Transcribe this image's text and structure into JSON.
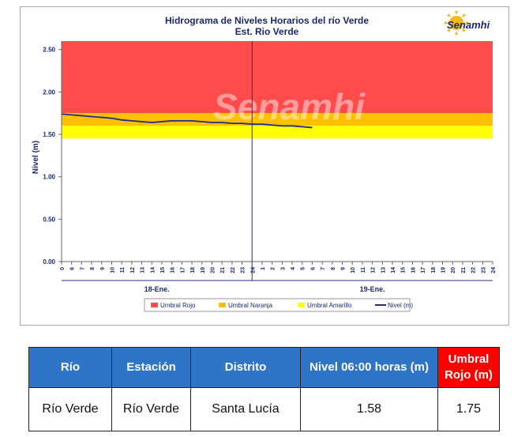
{
  "chart_data": {
    "type": "line",
    "title": "Hidrograma de Niveles Horarios del río Verde",
    "subtitle": "Est. Rio Verde",
    "ylabel": "Nivel (m)",
    "ylim": [
      0,
      2.6
    ],
    "y_ticks": [
      "0.00",
      "0.50",
      "1.00",
      "1.50",
      "2.00",
      "2.50"
    ],
    "x_ticks": [
      "0",
      "6",
      "7",
      "8",
      "9",
      "10",
      "11",
      "12",
      "13",
      "14",
      "15",
      "16",
      "17",
      "18",
      "19",
      "20",
      "21",
      "22",
      "23",
      "24",
      "1",
      "2",
      "3",
      "4",
      "5",
      "6",
      "7",
      "8",
      "9",
      "10",
      "11",
      "12",
      "13",
      "14",
      "15",
      "16",
      "17",
      "18",
      "19",
      "20",
      "21",
      "22",
      "23",
      "24"
    ],
    "day_labels": [
      "18-Ene.",
      "19-Ene."
    ],
    "thresholds": [
      {
        "name": "Umbral Rojo",
        "from": 1.75,
        "to": 2.6,
        "color": "#ff4b4b"
      },
      {
        "name": "Umbral Naranja",
        "from": 1.6,
        "to": 1.75,
        "color": "#ffc000"
      },
      {
        "name": "Umbral Amarillo",
        "from": 1.45,
        "to": 1.6,
        "color": "#ffff00"
      }
    ],
    "series": [
      {
        "name": "Nivel (m)",
        "color": "#1f2d8a",
        "values": [
          1.74,
          1.73,
          1.72,
          1.71,
          1.7,
          1.69,
          1.67,
          1.66,
          1.65,
          1.64,
          1.65,
          1.66,
          1.66,
          1.66,
          1.65,
          1.64,
          1.64,
          1.63,
          1.63,
          1.62,
          1.62,
          1.61,
          1.6,
          1.6,
          1.59,
          1.58
        ]
      }
    ],
    "legend": [
      "Umbral Rojo",
      "Umbral Naranja",
      "Umbral Amarillo",
      "Nivel (m)"
    ],
    "legend_position": "bottom",
    "grid": false
  },
  "logo": {
    "text": "Senamhi",
    "watermark": "Senamhi"
  },
  "table": {
    "headers": [
      "Río",
      "Estación",
      "Distrito",
      "Nivel  06:00 horas (m)",
      "Umbral Rojo (m)"
    ],
    "row": [
      "Río Verde",
      "Río Verde",
      "Santa Lucía",
      "1.58",
      "1.75"
    ]
  }
}
